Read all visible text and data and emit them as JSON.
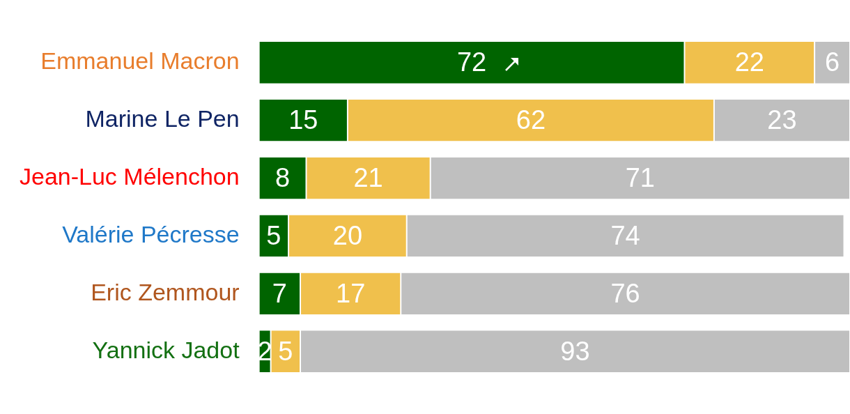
{
  "chart_data": {
    "type": "bar",
    "orientation": "horizontal",
    "stacked": true,
    "data_labels": true,
    "categories": [
      "Emmanuel Macron",
      "Marine Le Pen",
      "Jean-Luc Mélenchon",
      "Valérie Pécresse",
      "Eric Zemmour",
      "Yannick Jadot"
    ],
    "series": [
      {
        "color": "#006400",
        "values": [
          72,
          15,
          8,
          5,
          7,
          2
        ]
      },
      {
        "color": "#f0c04c",
        "values": [
          22,
          62,
          21,
          20,
          17,
          5
        ]
      },
      {
        "color": "#bfbfbf",
        "values": [
          6,
          23,
          71,
          74,
          76,
          93
        ]
      }
    ]
  }
}
